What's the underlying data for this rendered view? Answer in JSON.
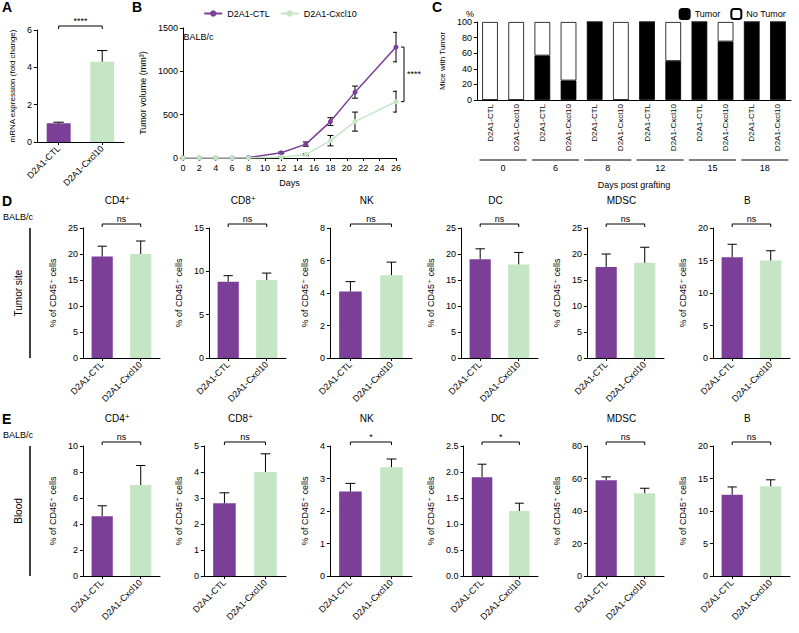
{
  "chart_data": [
    {
      "panel": "A",
      "type": "bar",
      "y_label": "mRNA expression (fold change)",
      "categories": [
        "D2A1-CTL",
        "D2A1-Cxcl10"
      ],
      "values": [
        1,
        4.3
      ],
      "errors": [
        0.06,
        0.6
      ],
      "colors": [
        "#7b3f98",
        "#c5e6c5"
      ],
      "ylim": [
        0,
        6
      ],
      "yticks": [
        0,
        2,
        4,
        6
      ],
      "significance": "****"
    },
    {
      "panel": "B",
      "type": "line",
      "subtitle": "BALB/c",
      "x_label": "Days",
      "y_label": "Tumor volume (mm³)",
      "x": [
        0,
        2,
        4,
        6,
        8,
        12,
        15,
        18,
        21,
        26
      ],
      "series": [
        {
          "name": "D2A1-CTL",
          "color": "#7b3f98",
          "values": [
            0,
            0,
            0,
            0,
            5,
            60,
            160,
            420,
            760,
            1280
          ],
          "errors": [
            0,
            0,
            0,
            0,
            2,
            10,
            25,
            45,
            70,
            170
          ]
        },
        {
          "name": "D2A1-Cxcl10",
          "color": "#c5e6c5",
          "values": [
            0,
            0,
            0,
            0,
            0,
            10,
            40,
            200,
            420,
            650
          ],
          "errors": [
            0,
            0,
            0,
            0,
            0,
            4,
            12,
            60,
            110,
            120
          ]
        }
      ],
      "xlim": [
        0,
        26
      ],
      "xticks": [
        0,
        2,
        4,
        6,
        8,
        10,
        12,
        14,
        16,
        18,
        20,
        22,
        24,
        26
      ],
      "ylim": [
        0,
        1500
      ],
      "yticks": [
        0,
        500,
        1000,
        1500
      ],
      "legend": "top",
      "marker": "circle",
      "significance": "****"
    },
    {
      "panel": "C",
      "type": "bar",
      "stacked": true,
      "y_label": "Mice with Tumor",
      "y_unit": "%",
      "x_label": "Days post grafting",
      "categories": [
        "D2A1-CTL",
        "D2A1-Cxcl10",
        "D2A1-CTL",
        "D2A1-Cxcl10",
        "D2A1-CTL",
        "D2A1-Cxcl10",
        "D2A1-CTL",
        "D2A1-Cxcl10",
        "D2A1-CTL",
        "D2A1-Cxcl10",
        "D2A1-CTL",
        "D2A1-Cxcl10"
      ],
      "groups": [
        0,
        6,
        8,
        12,
        15,
        18
      ],
      "series": [
        {
          "name": "Tumor",
          "color": "#000000",
          "values": [
            0,
            0,
            57,
            25,
            100,
            0,
            100,
            50,
            100,
            75,
            100,
            100
          ]
        },
        {
          "name": "No Tumor",
          "color": "#ffffff",
          "values": [
            100,
            100,
            43,
            75,
            0,
            100,
            0,
            50,
            0,
            25,
            0,
            0
          ]
        }
      ],
      "ylim": [
        0,
        100
      ],
      "yticks": [
        0,
        20,
        40,
        60,
        80,
        100
      ],
      "legend": "top-right"
    },
    {
      "panel": "D",
      "strain": "BALB/c",
      "row_label": "Tumor site",
      "type": "bar",
      "title": "CD4⁺",
      "y_label": "% of CD45⁺ cells",
      "categories": [
        "D2A1-CTL",
        "D2A1-Cxcl10"
      ],
      "values": [
        19.5,
        20
      ],
      "errors": [
        2,
        2.5
      ],
      "colors": [
        "#7b3f98",
        "#c5e6c5"
      ],
      "ylim": [
        0,
        25
      ],
      "yticks": [
        0,
        5,
        10,
        15,
        20,
        25
      ],
      "significance": "ns"
    },
    {
      "type": "bar",
      "title": "CD8⁺",
      "y_label": "% of CD45⁺ cells",
      "categories": [
        "D2A1-CTL",
        "D2A1-Cxcl10"
      ],
      "values": [
        8.8,
        9
      ],
      "errors": [
        0.7,
        0.8
      ],
      "colors": [
        "#7b3f98",
        "#c5e6c5"
      ],
      "ylim": [
        0,
        15
      ],
      "yticks": [
        0,
        5,
        10,
        15
      ],
      "significance": "ns"
    },
    {
      "type": "bar",
      "title": "NK",
      "y_label": "% of CD45⁺ cells",
      "categories": [
        "D2A1-CTL",
        "D2A1-Cxcl10"
      ],
      "values": [
        4.1,
        5.1
      ],
      "errors": [
        0.6,
        0.8
      ],
      "colors": [
        "#7b3f98",
        "#c5e6c5"
      ],
      "ylim": [
        0,
        8
      ],
      "yticks": [
        0,
        2,
        4,
        6,
        8
      ],
      "significance": "ns"
    },
    {
      "type": "bar",
      "title": "DC",
      "y_label": "% of CD45⁺ cells",
      "categories": [
        "D2A1-CTL",
        "D2A1-Cxcl10"
      ],
      "values": [
        19,
        18
      ],
      "errors": [
        2,
        2.3
      ],
      "colors": [
        "#7b3f98",
        "#c5e6c5"
      ],
      "ylim": [
        0,
        25
      ],
      "yticks": [
        0,
        5,
        10,
        15,
        20,
        25
      ],
      "significance": "ns"
    },
    {
      "type": "bar",
      "title": "MDSC",
      "y_label": "% of CD45⁺ cells",
      "categories": [
        "D2A1-CTL",
        "D2A1-Cxcl10"
      ],
      "values": [
        17.5,
        18.3
      ],
      "errors": [
        2.5,
        3
      ],
      "colors": [
        "#7b3f98",
        "#c5e6c5"
      ],
      "ylim": [
        0,
        25
      ],
      "yticks": [
        0,
        5,
        10,
        15,
        20,
        25
      ],
      "significance": "ns"
    },
    {
      "type": "bar",
      "title": "B",
      "y_label": "% of CD45⁺ cells",
      "categories": [
        "D2A1-CTL",
        "D2A1-Cxcl10"
      ],
      "values": [
        15.5,
        15
      ],
      "errors": [
        2,
        1.5
      ],
      "colors": [
        "#7b3f98",
        "#c5e6c5"
      ],
      "ylim": [
        0,
        20
      ],
      "yticks": [
        0,
        5,
        10,
        15,
        20
      ],
      "significance": "ns"
    },
    {
      "panel": "E",
      "strain": "BALB/c",
      "row_label": "Blood",
      "type": "bar",
      "title": "CD4⁺",
      "y_label": "% of CD45⁺ cells",
      "categories": [
        "D2A1-CTL",
        "D2A1-Cxcl10"
      ],
      "values": [
        4.6,
        7
      ],
      "errors": [
        0.8,
        1.5
      ],
      "colors": [
        "#7b3f98",
        "#c5e6c5"
      ],
      "ylim": [
        0,
        10
      ],
      "yticks": [
        0,
        2,
        4,
        6,
        8,
        10
      ],
      "significance": "ns"
    },
    {
      "type": "bar",
      "title": "CD8⁺",
      "y_label": "% of CD45⁺ cells",
      "categories": [
        "D2A1-CTL",
        "D2A1-Cxcl10"
      ],
      "values": [
        2.8,
        4
      ],
      "errors": [
        0.4,
        0.7
      ],
      "colors": [
        "#7b3f98",
        "#c5e6c5"
      ],
      "ylim": [
        0,
        5
      ],
      "yticks": [
        0,
        1,
        2,
        3,
        4,
        5
      ],
      "significance": "ns"
    },
    {
      "type": "bar",
      "title": "NK",
      "y_label": "% of CD45⁺ cells",
      "categories": [
        "D2A1-CTL",
        "D2A1-Cxcl10"
      ],
      "values": [
        2.6,
        3.35
      ],
      "errors": [
        0.25,
        0.25
      ],
      "colors": [
        "#7b3f98",
        "#c5e6c5"
      ],
      "ylim": [
        0,
        4
      ],
      "yticks": [
        0,
        1,
        2,
        3,
        4
      ],
      "significance": "*"
    },
    {
      "type": "bar",
      "title": "DC",
      "y_label": "% of CD45⁺ cells",
      "categories": [
        "D2A1-CTL",
        "D2A1-Cxcl10"
      ],
      "values": [
        1.9,
        1.25
      ],
      "errors": [
        0.25,
        0.15
      ],
      "colors": [
        "#7b3f98",
        "#c5e6c5"
      ],
      "ylim": [
        0,
        2.5
      ],
      "yticks": [
        {
          "value": 0,
          "label": "0.0"
        },
        {
          "value": 0.5,
          "label": "0.5"
        },
        {
          "value": 1,
          "label": "1.0"
        },
        {
          "value": 1.5,
          "label": "1.5"
        },
        {
          "value": 2,
          "label": "2.0"
        },
        {
          "value": 2.5,
          "label": "2.5"
        }
      ],
      "significance": "*"
    },
    {
      "type": "bar",
      "title": "MDSC",
      "y_label": "% of CD45⁺ cells",
      "categories": [
        "D2A1-CTL",
        "D2A1-Cxcl10"
      ],
      "values": [
        59,
        51
      ],
      "errors": [
        2,
        3
      ],
      "colors": [
        "#7b3f98",
        "#c5e6c5"
      ],
      "ylim": [
        0,
        80
      ],
      "yticks": [
        0,
        20,
        40,
        60,
        80
      ],
      "significance": "ns"
    },
    {
      "type": "bar",
      "title": "B",
      "y_label": "% of CD45⁺ cells",
      "categories": [
        "D2A1-CTL",
        "D2A1-Cxcl10"
      ],
      "values": [
        12.5,
        13.8
      ],
      "errors": [
        1.2,
        1
      ],
      "colors": [
        "#7b3f98",
        "#c5e6c5"
      ],
      "ylim": [
        0,
        20
      ],
      "yticks": [
        0,
        5,
        10,
        15,
        20
      ],
      "significance": "ns"
    }
  ]
}
